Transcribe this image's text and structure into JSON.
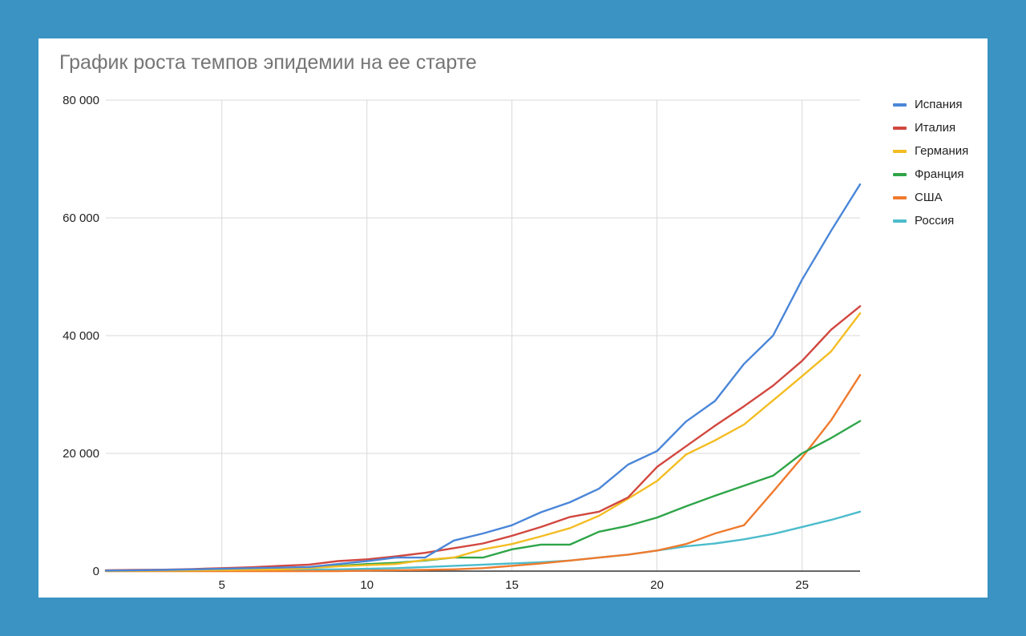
{
  "chart_data": {
    "type": "line",
    "title": "График роста темпов эпидемии на ее старте",
    "xlabel": "",
    "ylabel": "",
    "xlim": [
      1,
      27
    ],
    "ylim": [
      0,
      80000
    ],
    "x_ticks": [
      5,
      10,
      15,
      20,
      25
    ],
    "x_tick_labels": [
      "5",
      "10",
      "15",
      "20",
      "25"
    ],
    "y_ticks": [
      0,
      20000,
      40000,
      60000,
      80000
    ],
    "y_tick_labels": [
      "0",
      "20 000",
      "40 000",
      "60 000",
      "80 000"
    ],
    "grid": true,
    "legend_position": "right-top",
    "x": [
      1,
      2,
      3,
      4,
      5,
      6,
      7,
      8,
      9,
      10,
      11,
      12,
      13,
      14,
      15,
      16,
      17,
      18,
      19,
      20,
      21,
      22,
      23,
      24,
      25,
      26,
      27
    ],
    "series": [
      {
        "name": "Испания",
        "color": "#4a86d8",
        "values": [
          100,
          150,
          200,
          300,
          400,
          500,
          600,
          700,
          1200,
          1700,
          2300,
          2300,
          5200,
          6400,
          7800,
          10000,
          11700,
          14000,
          18100,
          20400,
          25400,
          28900,
          35200,
          40000,
          49500,
          57800,
          65700
        ]
      },
      {
        "name": "Италия",
        "color": "#d1473f",
        "values": [
          150,
          200,
          250,
          350,
          500,
          650,
          900,
          1100,
          1700,
          2000,
          2500,
          3100,
          3900,
          4700,
          6000,
          7500,
          9200,
          10100,
          12500,
          17700,
          21200,
          24700,
          28000,
          31500,
          35700,
          41000,
          45000
        ]
      },
      {
        "name": "Германия",
        "color": "#f3bd22",
        "values": [
          50,
          80,
          100,
          130,
          180,
          240,
          300,
          500,
          800,
          1000,
          1200,
          1900,
          2300,
          3700,
          4600,
          5900,
          7300,
          9400,
          12300,
          15300,
          19800,
          22200,
          24900,
          29000,
          33100,
          37300,
          43800
        ]
      },
      {
        "name": "Франция",
        "color": "#2ea548",
        "values": [
          50,
          80,
          100,
          150,
          200,
          300,
          400,
          600,
          900,
          1200,
          1400,
          1800,
          2300,
          2300,
          3700,
          4500,
          4500,
          6700,
          7700,
          9100,
          11000,
          12800,
          14500,
          16200,
          20000,
          22600,
          25500
        ]
      },
      {
        "name": "США",
        "color": "#ef7b2e",
        "values": [
          0,
          0,
          0,
          0,
          0,
          0,
          0,
          0,
          0,
          100,
          150,
          200,
          300,
          500,
          900,
          1300,
          1800,
          2300,
          2800,
          3500,
          4600,
          6400,
          7800,
          13500,
          19300,
          25600,
          33300
        ]
      },
      {
        "name": "Россия",
        "color": "#4cbccc",
        "values": [
          100,
          100,
          100,
          100,
          100,
          150,
          200,
          250,
          300,
          400,
          500,
          700,
          900,
          1100,
          1300,
          1500,
          1800,
          2300,
          2800,
          3500,
          4200,
          4700,
          5400,
          6300,
          7500,
          8700,
          10100
        ]
      }
    ]
  }
}
